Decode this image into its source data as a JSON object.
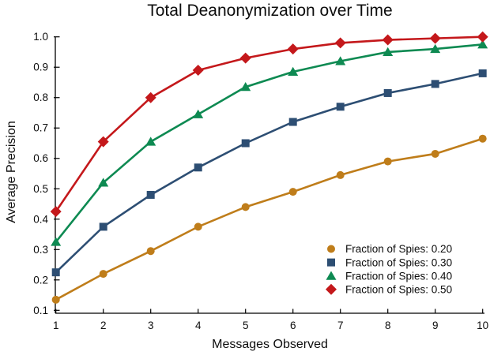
{
  "chart_data": {
    "type": "line",
    "title": "Total Deanonymization over Time",
    "xlabel": "Messages Observed",
    "ylabel": "Average Precision",
    "x": [
      1,
      2,
      3,
      4,
      5,
      6,
      7,
      8,
      9,
      10
    ],
    "xticks": [
      "1",
      "2",
      "3",
      "4",
      "5",
      "6",
      "7",
      "8",
      "9",
      "10"
    ],
    "yticks": [
      "0.1",
      "0.2",
      "0.3",
      "0.4",
      "0.5",
      "0.6",
      "0.7",
      "0.8",
      "0.9",
      "1.0"
    ],
    "xlim": [
      1,
      10
    ],
    "ylim": [
      0.1,
      1.0
    ],
    "grid": false,
    "legend": {
      "position": "lower right",
      "frame": false
    },
    "series": [
      {
        "name": "Fraction of Spies: 0.20",
        "marker": "circle",
        "color": "#BF7D1A",
        "values": [
          0.135,
          0.22,
          0.295,
          0.375,
          0.44,
          0.49,
          0.545,
          0.59,
          0.615,
          0.665
        ]
      },
      {
        "name": "Fraction of Spies: 0.30",
        "marker": "square",
        "color": "#2D4E73",
        "values": [
          0.225,
          0.375,
          0.48,
          0.57,
          0.65,
          0.72,
          0.77,
          0.815,
          0.845,
          0.88
        ]
      },
      {
        "name": "Fraction of Spies: 0.40",
        "marker": "triangle",
        "color": "#0E8A52",
        "values": [
          0.325,
          0.52,
          0.655,
          0.745,
          0.835,
          0.885,
          0.92,
          0.95,
          0.96,
          0.975
        ]
      },
      {
        "name": "Fraction of Spies: 0.50",
        "marker": "diamond",
        "color": "#C4181B",
        "values": [
          0.425,
          0.655,
          0.8,
          0.89,
          0.93,
          0.96,
          0.98,
          0.99,
          0.995,
          1.0
        ]
      }
    ]
  }
}
